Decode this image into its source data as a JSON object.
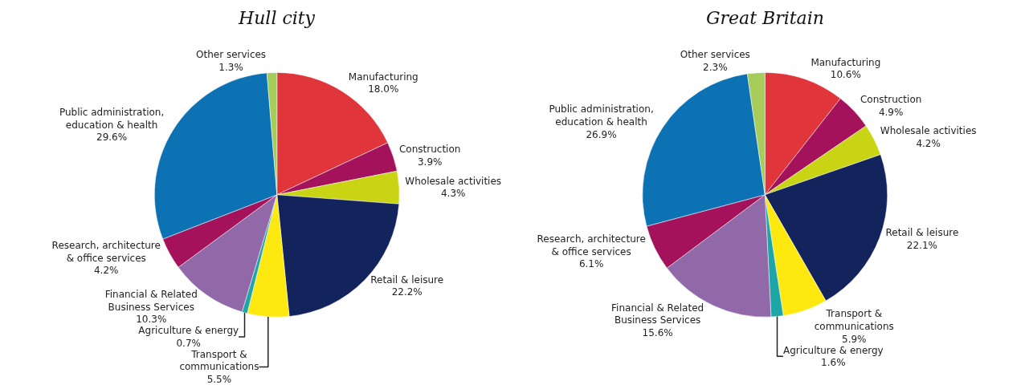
{
  "chart_data": [
    {
      "type": "pie",
      "title": "Hull city",
      "legend": false,
      "categories": [
        "Manufacturing",
        "Construction",
        "Wholesale activities",
        "Retail & leisure",
        "Transport & communications",
        "Agriculture & energy",
        "Financial & Related Business Services",
        "Research, architecture & office services",
        "Public administration, education & health",
        "Other services"
      ],
      "values": [
        18.0,
        3.9,
        4.3,
        22.2,
        5.5,
        0.7,
        10.3,
        4.2,
        29.6,
        1.3
      ],
      "value_labels": [
        "18.0%",
        "3.9%",
        "4.3%",
        "22.2%",
        "5.5%",
        "0.7%",
        "10.3%",
        "4.2%",
        "29.6%",
        "1.3%"
      ],
      "colors": [
        "#e0353b",
        "#a3125a",
        "#c8d414",
        "#13235c",
        "#fde80f",
        "#1ea6a6",
        "#9169a8",
        "#a3125a",
        "#0c72b4",
        "#a6cc5a"
      ]
    },
    {
      "type": "pie",
      "title": "Great Britain",
      "legend": false,
      "categories": [
        "Manufacturing",
        "Construction",
        "Wholesale activities",
        "Retail & leisure",
        "Transport & communications",
        "Agriculture & energy",
        "Financial & Related Business Services",
        "Research, architecture & office services",
        "Public administration, education & health",
        "Other services"
      ],
      "values": [
        10.6,
        4.9,
        4.2,
        22.1,
        5.9,
        1.6,
        15.6,
        6.1,
        26.9,
        2.3
      ],
      "value_labels": [
        "10.6%",
        "4.9%",
        "4.2%",
        "22.1%",
        "5.9%",
        "1.6%",
        "15.6%",
        "6.1%",
        "26.9%",
        "2.3%"
      ],
      "colors": [
        "#e0353b",
        "#a3125a",
        "#c8d414",
        "#13235c",
        "#fde80f",
        "#1ea6a6",
        "#9169a8",
        "#a3125a",
        "#0c72b4",
        "#a6cc5a"
      ]
    }
  ]
}
